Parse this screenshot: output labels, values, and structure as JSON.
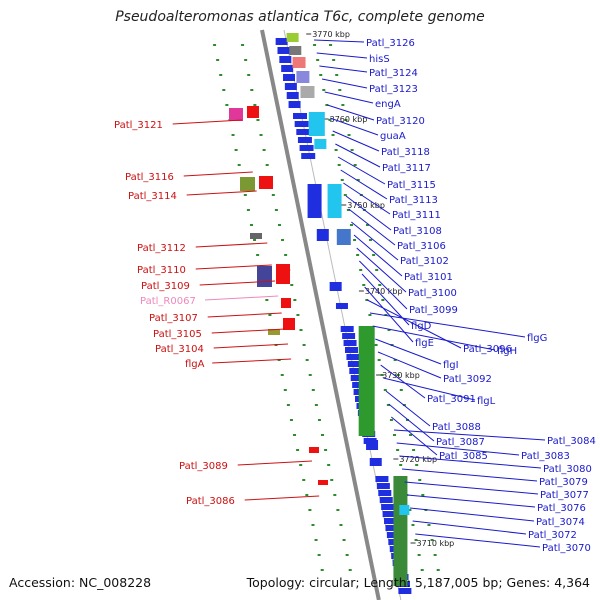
{
  "title": "Pseudoalteromonas atlantica T6c, complete genome",
  "footer": {
    "accession": "Accession: NC_008228",
    "summary": "Topology: circular; Length: 5,187,005 bp; Genes: 4,364"
  },
  "colors": {
    "backbone": "#888888",
    "tick": "#2e8b2e",
    "right_label": "#1a1acc",
    "left_label": "#cc1111",
    "rna_label": "#ee88bb"
  },
  "kbp_markers": [
    "3770 kbp",
    "3760 kbp",
    "3750 kbp",
    "3740 kbp",
    "3730 kbp",
    "3720 kbp",
    "3710 kbp"
  ],
  "right_labels": [
    "Patl_3126",
    "hisS",
    "Patl_3124",
    "Patl_3123",
    "engA",
    "Patl_3120",
    "guaA",
    "Patl_3118",
    "Patl_3117",
    "Patl_3115",
    "Patl_3113",
    "Patl_3111",
    "Patl_3108",
    "Patl_3106",
    "Patl_3102",
    "Patl_3101",
    "Patl_3100",
    "Patl_3099",
    "flgD",
    "flgE",
    "Patl_3096",
    "flgG",
    "flgH",
    "flgI",
    "Patl_3092",
    "Patl_3091",
    "flgL",
    "Patl_3088",
    "Patl_3087",
    "Patl_3085",
    "Patl_3084",
    "Patl_3083",
    "Patl_3080",
    "Patl_3079",
    "Patl_3077",
    "Patl_3076",
    "Patl_3074",
    "Patl_3072",
    "Patl_3070"
  ],
  "left_labels": [
    "Patl_3121",
    "Patl_3116",
    "Patl_3114",
    "Patl_3112",
    "Patl_3110",
    "Patl_3109",
    "Patl_R0067",
    "Patl_3107",
    "Patl_3105",
    "Patl_3104",
    "flgA",
    "Patl_3089",
    "Patl_3086"
  ]
}
